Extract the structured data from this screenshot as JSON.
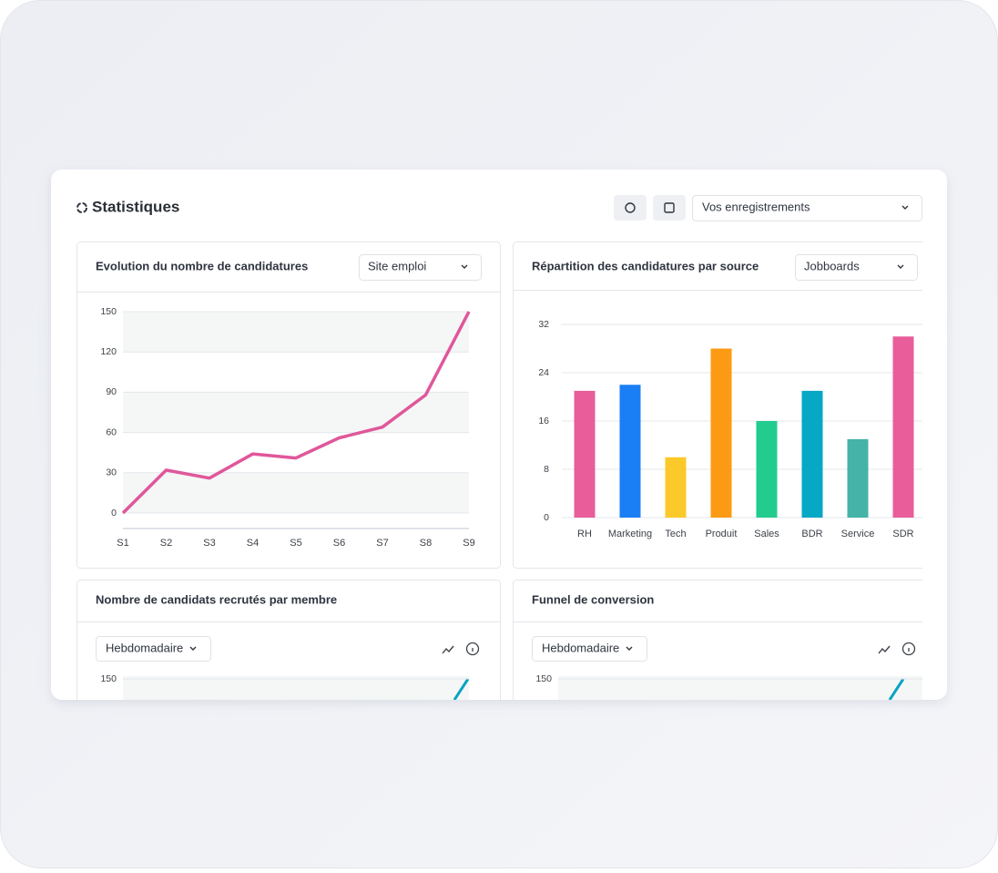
{
  "header": {
    "title": "Statistiques",
    "dropdown": "Vos enregistrements"
  },
  "chart_data": [
    {
      "type": "line",
      "title": "Evolution du nombre de candidatures",
      "filter": "Site emploi",
      "categories": [
        "S1",
        "S2",
        "S3",
        "S4",
        "S5",
        "S6",
        "S7",
        "S8",
        "S9"
      ],
      "values": [
        0,
        32,
        26,
        44,
        41,
        56,
        64,
        88,
        150
      ],
      "color": "#e0579a",
      "ylim": [
        0,
        150
      ],
      "yticks": [
        0,
        30,
        60,
        90,
        120,
        150
      ],
      "grid": true
    },
    {
      "type": "bar",
      "title": "Répartition des candidatures par source",
      "filter": "Jobboards",
      "categories": [
        "RH",
        "Marketing",
        "Tech",
        "Produit",
        "Sales",
        "BDR",
        "Service",
        "SDR"
      ],
      "values": [
        21,
        22,
        10,
        28,
        16,
        21,
        13,
        30
      ],
      "colors": [
        "#e85d9a",
        "#1a7ff5",
        "#fcc92a",
        "#fd9a14",
        "#22cc8f",
        "#07a7c6",
        "#45b3a8",
        "#e85d9a"
      ],
      "ylim": [
        0,
        32
      ],
      "yticks": [
        0,
        8,
        16,
        24,
        32
      ],
      "grid": true
    },
    {
      "type": "line",
      "title": "Nombre de candidats recrutés par membre",
      "period": "Hebdomadaire",
      "ylim": [
        0,
        150
      ],
      "yticks": [
        150
      ],
      "grid": true
    },
    {
      "type": "line",
      "title": "Funnel de conversion",
      "period": "Hebdomadaire",
      "ylim": [
        0,
        150
      ],
      "yticks": [
        150
      ],
      "grid": true
    }
  ]
}
